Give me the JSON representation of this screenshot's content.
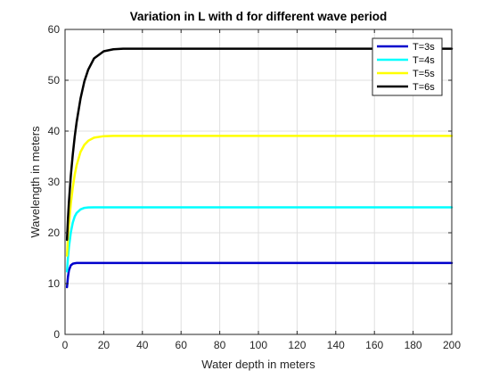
{
  "chart_data": {
    "type": "line",
    "title": "Variation in L with d for different wave period",
    "xlabel": "Water depth in meters",
    "ylabel": "Wavelength in meters",
    "xlim": [
      0,
      200
    ],
    "ylim": [
      0,
      60
    ],
    "xticks": [
      0,
      20,
      40,
      60,
      80,
      100,
      120,
      140,
      160,
      180,
      200
    ],
    "yticks": [
      0,
      10,
      20,
      30,
      40,
      50,
      60
    ],
    "grid": true,
    "legend_position": "top-right",
    "series": [
      {
        "name": "T=3s",
        "color": "#0000cc",
        "x": [
          1,
          1.5,
          2,
          3,
          4,
          5,
          6,
          8,
          10,
          15,
          20,
          30,
          50,
          100,
          200
        ],
        "y": [
          9.3,
          11.3,
          12.6,
          13.6,
          13.9,
          14.0,
          14.05,
          14.05,
          14.05,
          14.05,
          14.05,
          14.05,
          14.05,
          14.05,
          14.05
        ]
      },
      {
        "name": "T=4s",
        "color": "#00ffff",
        "x": [
          1,
          1.5,
          2,
          3,
          4,
          5,
          6,
          8,
          10,
          12,
          15,
          20,
          30,
          50,
          100,
          200
        ],
        "y": [
          12.4,
          15.1,
          17.2,
          20.1,
          22.0,
          23.2,
          23.9,
          24.6,
          24.9,
          24.97,
          25.0,
          25.0,
          25.0,
          25.0,
          25.0,
          25.0
        ]
      },
      {
        "name": "T=5s",
        "color": "#ffff00",
        "x": [
          1,
          1.5,
          2,
          3,
          4,
          5,
          6,
          8,
          10,
          12,
          15,
          20,
          25,
          30,
          50,
          100,
          200
        ],
        "y": [
          15.5,
          18.9,
          21.6,
          25.8,
          28.9,
          31.4,
          33.3,
          35.9,
          37.3,
          38.1,
          38.7,
          39.0,
          39.05,
          39.05,
          39.05,
          39.05,
          39.05
        ]
      },
      {
        "name": "T=6s",
        "color": "#000000",
        "x": [
          1,
          1.5,
          2,
          3,
          4,
          5,
          6,
          8,
          10,
          12,
          15,
          20,
          25,
          30,
          40,
          50,
          100,
          200
        ],
        "y": [
          18.6,
          22.7,
          26.0,
          31.3,
          35.4,
          38.9,
          41.8,
          46.4,
          49.8,
          52.1,
          54.3,
          55.7,
          56.1,
          56.2,
          56.2,
          56.2,
          56.2,
          56.2
        ]
      }
    ]
  }
}
